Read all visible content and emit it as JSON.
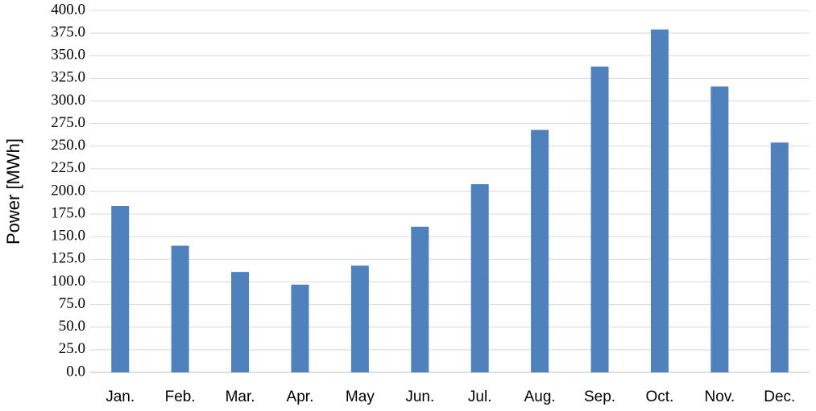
{
  "chart_data": {
    "type": "bar",
    "y_label": "Power [MWh]",
    "categories": [
      "Jan.",
      "Feb.",
      "Mar.",
      "Apr.",
      "May",
      "Jun.",
      "Jul.",
      "Aug.",
      "Sep.",
      "Oct.",
      "Nov.",
      "Dec."
    ],
    "values": [
      184,
      140,
      111,
      97,
      118,
      161,
      208,
      268,
      338,
      379,
      316,
      254
    ],
    "color": "#4f81bd",
    "ylim": [
      0,
      400
    ],
    "yticks": [
      {
        "value": 0,
        "label": "0.0"
      },
      {
        "value": 25,
        "label": "25.0"
      },
      {
        "value": 50,
        "label": "50.0"
      },
      {
        "value": 75,
        "label": "75.0"
      },
      {
        "value": 100,
        "label": "100.0"
      },
      {
        "value": 125,
        "label": "125.0"
      },
      {
        "value": 150,
        "label": "150.0"
      },
      {
        "value": 175,
        "label": "175.0"
      },
      {
        "value": 200,
        "label": "200.0"
      },
      {
        "value": 225,
        "label": "225.0"
      },
      {
        "value": 250,
        "label": "250.0"
      },
      {
        "value": 275,
        "label": "275.0"
      },
      {
        "value": 300,
        "label": "300.0"
      },
      {
        "value": 325,
        "label": "325.0"
      },
      {
        "value": 350,
        "label": "350.0"
      },
      {
        "value": 375,
        "label": "375.0"
      },
      {
        "value": 400,
        "label": "400.0"
      }
    ],
    "grid": true
  }
}
